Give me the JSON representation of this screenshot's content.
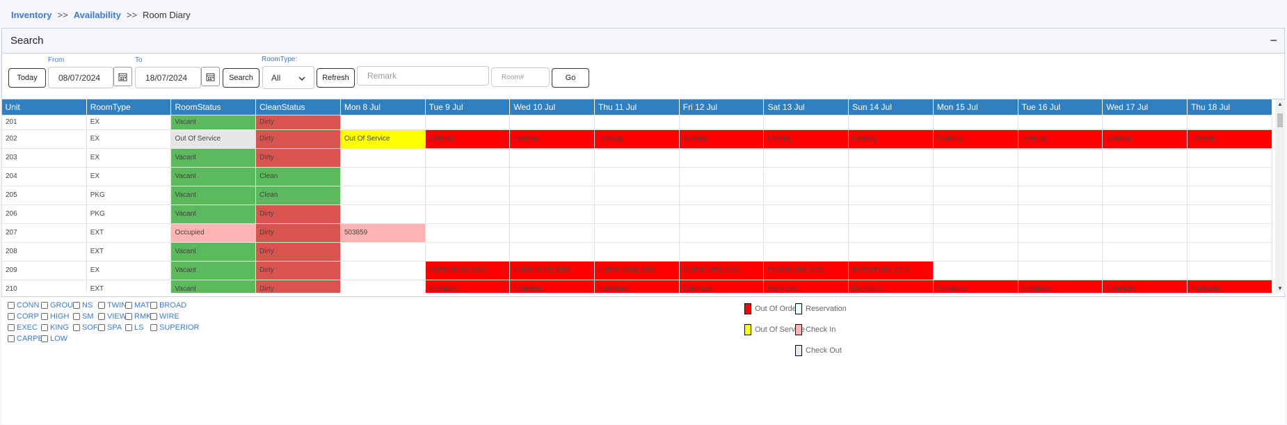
{
  "breadcrumb": {
    "item1": "Inventory",
    "sep": ">>",
    "item2": "Availability",
    "current": "Room Diary"
  },
  "panel": {
    "title": "Search",
    "collapse_glyph": "−"
  },
  "filters": {
    "from_label": "From",
    "to_label": "To",
    "roomtype_label": "RoomType:",
    "today": "Today",
    "from_value": "08/07/2024",
    "to_value": "18/07/2024",
    "search": "Search",
    "roomtype_value": "All",
    "refresh": "Refresh",
    "remark_placeholder": "Remark",
    "room_placeholder": "Room#",
    "go": "Go"
  },
  "grid": {
    "headers": [
      "Unit",
      "RoomType",
      "RoomStatus",
      "CleanStatus",
      "Mon 8 Jul",
      "Tue 9 Jul",
      "Wed 10 Jul",
      "Thu 11 Jul",
      "Fri 12 Jul",
      "Sat 13 Jul",
      "Sun 14 Jul",
      "Mon 15 Jul",
      "Tue 16 Jul",
      "Wed 17 Jul",
      "Thu 18 Jul"
    ],
    "rows": [
      {
        "unit": "201",
        "type": "EX",
        "status": "Vacant",
        "clean": "Dirty",
        "days": [
          "",
          "",
          "",
          "",
          "",
          "",
          "",
          "",
          "",
          "",
          ""
        ]
      },
      {
        "unit": "202",
        "type": "EX",
        "status": "Out Of Service",
        "clean": "Dirty",
        "days": [
          "Out Of Service",
          "Leaking",
          "Leaking",
          "Leaking",
          "Leaking",
          "Leaking",
          "Leaking",
          "Leaking",
          "Leaking",
          "Leaking",
          "Leaking"
        ]
      },
      {
        "unit": "203",
        "type": "EX",
        "status": "Vacant",
        "clean": "Dirty",
        "days": [
          "",
          "",
          "",
          "",
          "",
          "",
          "",
          "",
          "",
          "",
          ""
        ]
      },
      {
        "unit": "204",
        "type": "EX",
        "status": "Vacant",
        "clean": "Clean",
        "days": [
          "",
          "",
          "",
          "",
          "",
          "",
          "",
          "",
          "",
          "",
          ""
        ]
      },
      {
        "unit": "205",
        "type": "PKG",
        "status": "Vacant",
        "clean": "Clean",
        "days": [
          "",
          "",
          "",
          "",
          "",
          "",
          "",
          "",
          "",
          "",
          ""
        ]
      },
      {
        "unit": "206",
        "type": "PKG",
        "status": "Vacant",
        "clean": "Dirty",
        "days": [
          "",
          "",
          "",
          "",
          "",
          "",
          "",
          "",
          "",
          "",
          ""
        ]
      },
      {
        "unit": "207",
        "type": "EXT",
        "status": "Occupied",
        "clean": "Dirty",
        "days": [
          "503859",
          "",
          "",
          "",
          "",
          "",
          "",
          "",
          "",
          "",
          ""
        ]
      },
      {
        "unit": "208",
        "type": "EXT",
        "status": "Vacant",
        "clean": "Dirty",
        "days": [
          "",
          "",
          "",
          "",
          "",
          "",
          "",
          "",
          "",
          "",
          ""
        ]
      },
      {
        "unit": "209",
        "type": "EX",
        "status": "Vacant",
        "clean": "Dirty",
        "days": [
          "",
          "FURNITURE STO..",
          "FURNITURE STO..",
          "FURNITURE STO..",
          "FURNITURE STO..",
          "FURNITURE STO..",
          "FURNITURE STO..",
          "",
          "",
          "",
          ""
        ]
      },
      {
        "unit": "210",
        "type": "EXT",
        "status": "Vacant",
        "clean": "Dirty",
        "days": [
          "",
          "Furiniture",
          "Furiniture",
          "Furiniture",
          "Furiniture",
          "Furiniture",
          "Furiniture",
          "Furiniture",
          "Furiniture",
          "Furiniture",
          "Furiniture"
        ]
      }
    ]
  },
  "features": [
    "CONN",
    "GROUT",
    "NS",
    "TWIN",
    "MATT",
    "BROAD",
    "CORP",
    "HIGH",
    "SM",
    "VIEW",
    "RMK",
    "WIRE",
    "EXEC",
    "KING",
    "SOFA",
    "SPA",
    "LS",
    "SUPERIOR",
    "CARPET",
    "LOW"
  ],
  "legend": {
    "out_of_order": "Out Of Order",
    "reservation": "Reservation",
    "out_of_service": "Out Of Service",
    "check_in": "Check In",
    "check_out": "Check Out"
  },
  "colors": {
    "header_blue": "#2f7fc1",
    "vacant_green": "#5cb85c",
    "dirty_red": "#d9534f",
    "out_of_order": "#ff0000",
    "out_of_service": "#ffff00",
    "reservation": "#e0ffff",
    "check_in": "#ffb3b3",
    "check_out": "#ece6f5",
    "link_blue": "#3a7bd5"
  }
}
